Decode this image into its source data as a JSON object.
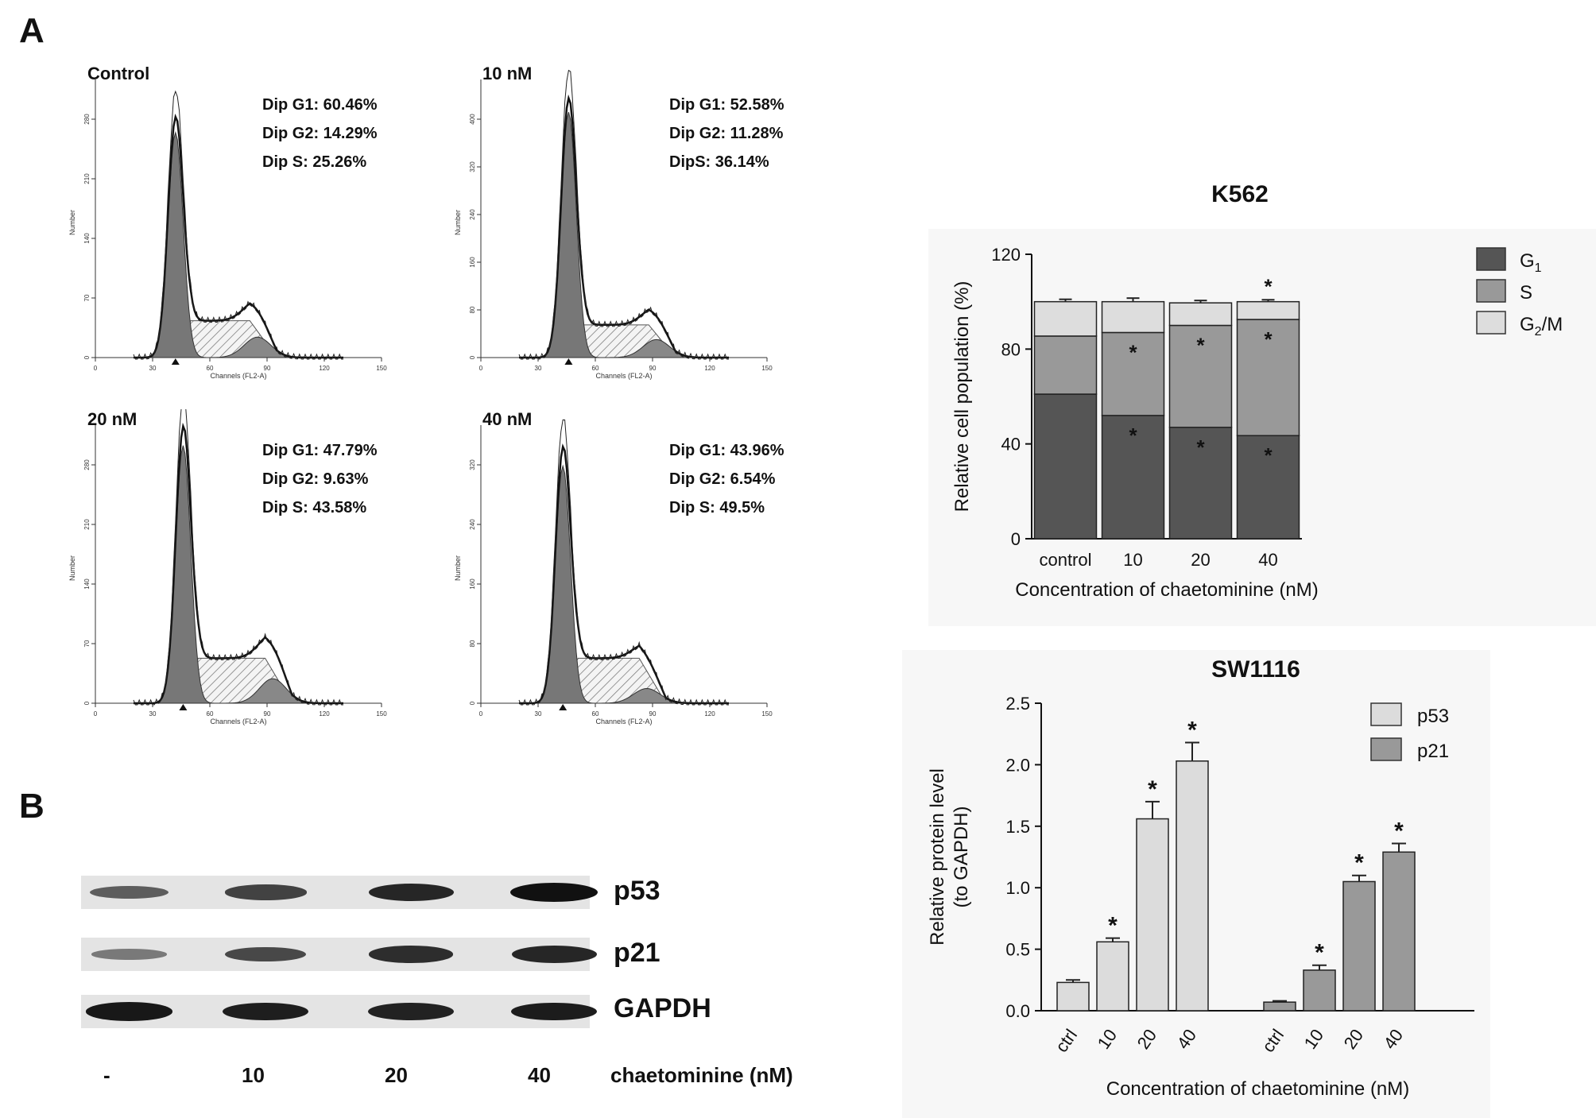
{
  "panels": {
    "A": "A",
    "B": "B"
  },
  "flow_panels": [
    {
      "title": "Control",
      "stats": [
        "Dip G1: 60.46%",
        "Dip G2: 14.29%",
        "Dip S: 25.26%"
      ],
      "y_ticks": [
        "0",
        "70",
        "140",
        "210",
        "280"
      ],
      "y_label": "Number"
    },
    {
      "title": "10 nM",
      "stats": [
        "Dip G1: 52.58%",
        "Dip G2: 11.28%",
        "DipS: 36.14%"
      ],
      "y_ticks": [
        "0",
        "80",
        "160",
        "240",
        "320",
        "400"
      ],
      "y_label": "Number"
    },
    {
      "title": "20 nM",
      "stats": [
        "Dip G1: 47.79%",
        "Dip G2: 9.63%",
        "Dip S: 43.58%"
      ],
      "y_ticks": [
        "0",
        "70",
        "140",
        "210",
        "280"
      ],
      "y_label": "Number"
    },
    {
      "title": "40 nM",
      "stats": [
        "Dip G1: 43.96%",
        "Dip G2: 6.54%",
        "Dip S: 49.5%"
      ],
      "y_ticks": [
        "0",
        "80",
        "160",
        "240",
        "320"
      ],
      "y_label": "Number"
    }
  ],
  "flow_x_ticks": [
    "0",
    "30",
    "60",
    "90",
    "120",
    "150"
  ],
  "flow_x_label": "Channels (FL2-A)",
  "blot": {
    "labels": [
      "p53",
      "p21",
      "GAPDH"
    ],
    "lanes": [
      "-",
      "10",
      "20",
      "40"
    ],
    "lane_unit": "chaetominine (nM)",
    "intensity": {
      "p53": [
        0.45,
        0.65,
        0.85,
        1.0
      ],
      "p21": [
        0.25,
        0.6,
        0.8,
        0.85
      ],
      "GAPDH": [
        0.95,
        0.9,
        0.88,
        0.92
      ]
    }
  },
  "chart_data": [
    {
      "type": "bar",
      "stacked": true,
      "title": "K562",
      "ylabel": "Relative cell population (%)",
      "xlabel": "Concentration of chaetominine (nM)",
      "categories": [
        "control",
        "10",
        "20",
        "40"
      ],
      "ylim": [
        0,
        120
      ],
      "yticks": [
        "0",
        "40",
        "80",
        "120"
      ],
      "series": [
        {
          "name": "G1",
          "name_sub": "1",
          "name_main": "G",
          "color": "#555555",
          "values": [
            61,
            52,
            47,
            43.5
          ],
          "errors": [
            5.5,
            1.5,
            1.2,
            1.5
          ],
          "stars": [
            false,
            true,
            true,
            true
          ]
        },
        {
          "name": "S",
          "name_sub": "",
          "name_main": "S",
          "color": "#999999",
          "values": [
            24.5,
            35,
            43,
            49
          ],
          "errors": [
            3.5,
            1,
            1,
            1
          ],
          "stars": [
            false,
            true,
            true,
            true
          ]
        },
        {
          "name": "G2/M",
          "name_sub": "2",
          "name_main": "G",
          "name_tail": "/M",
          "color": "#dddddd",
          "values": [
            14.5,
            13,
            9.5,
            7.5
          ],
          "errors": [
            1,
            1.5,
            1,
            0.8
          ],
          "stars": [
            false,
            false,
            false,
            true
          ]
        }
      ]
    },
    {
      "type": "bar",
      "title": "SW1116",
      "ylabel": "Relative protein level",
      "ylabel2": "(to GAPDH)",
      "xlabel": "Concentration of chaetominine (nM)",
      "categories": [
        "ctrl",
        "10",
        "20",
        "40"
      ],
      "ylim": [
        0,
        2.5
      ],
      "yticks": [
        "0.0",
        "0.5",
        "1.0",
        "1.5",
        "2.0",
        "2.5"
      ],
      "series": [
        {
          "name": "p53",
          "color": "#dcdcdc",
          "values": [
            0.23,
            0.56,
            1.56,
            2.03
          ],
          "errors": [
            0.02,
            0.03,
            0.14,
            0.15
          ],
          "stars": [
            false,
            true,
            true,
            true
          ]
        },
        {
          "name": "p21",
          "color": "#999999",
          "values": [
            0.07,
            0.33,
            1.05,
            1.29
          ],
          "errors": [
            0.01,
            0.04,
            0.05,
            0.07
          ],
          "stars": [
            false,
            true,
            true,
            true
          ]
        }
      ]
    }
  ]
}
